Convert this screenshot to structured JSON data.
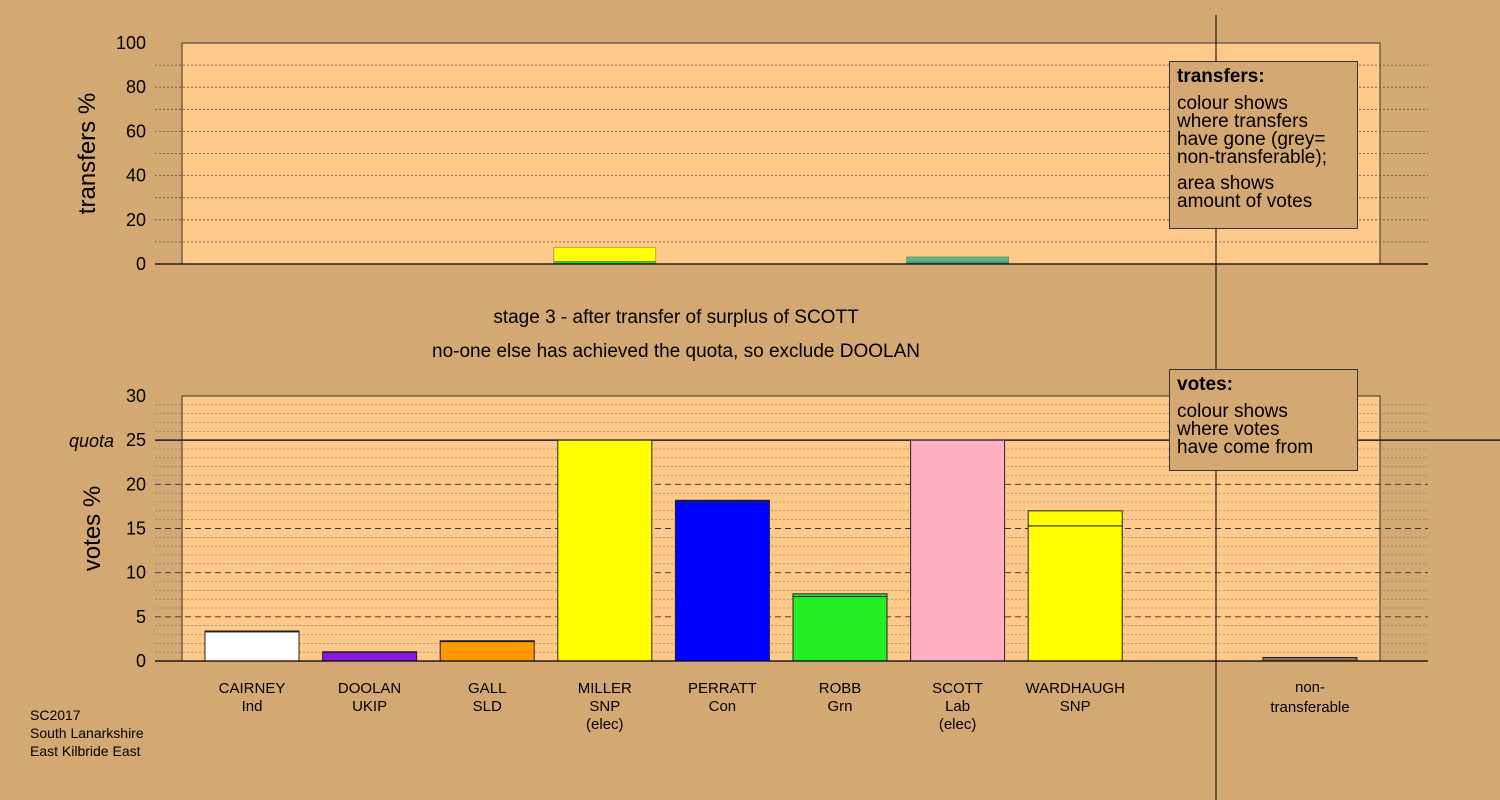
{
  "chart_data": [
    {
      "type": "bar",
      "ylabel": "transfers %",
      "ylim": [
        0,
        100
      ],
      "yticks": [
        0,
        20,
        40,
        60,
        80,
        100
      ],
      "segments": [
        {
          "category": "MILLER",
          "bottom": 0,
          "top": 1.2,
          "color": "#33cc33"
        },
        {
          "category": "MILLER",
          "bottom": 1.2,
          "top": 7.6,
          "color": "#ffff00"
        },
        {
          "category": "SCOTT",
          "bottom": 0,
          "top": 1.0,
          "color": "#3399aa"
        },
        {
          "category": "SCOTT",
          "bottom": 1.0,
          "top": 3.2,
          "color": "#55bb77"
        }
      ]
    },
    {
      "type": "bar",
      "ylabel": "votes %",
      "ylim": [
        0,
        30
      ],
      "yticks": [
        0,
        5,
        10,
        15,
        20,
        25,
        30
      ],
      "quota": 25,
      "quota_label": "quota",
      "series": [
        {
          "name": "CAIRNEY",
          "party": "Ind",
          "note": "",
          "color": "#ffffff",
          "value": 3.3,
          "transfer": 0.1
        },
        {
          "name": "DOOLAN",
          "party": "UKIP",
          "note": "",
          "color": "#8a1ae0",
          "value": 1.0,
          "transfer": 0.05
        },
        {
          "name": "GALL",
          "party": "SLD",
          "note": "",
          "color": "#ff9900",
          "value": 2.2,
          "transfer": 0.1
        },
        {
          "name": "MILLER",
          "party": "SNP",
          "note": "(elec)",
          "color": "#ffff00",
          "value": 25.0,
          "transfer": 0.0
        },
        {
          "name": "PERRATT",
          "party": "Con",
          "note": "",
          "color": "#0000ff",
          "value": 18.0,
          "transfer": 0.2
        },
        {
          "name": "ROBB",
          "party": "Grn",
          "note": "",
          "color": "#22ee22",
          "value": 7.3,
          "transfer": 0.3
        },
        {
          "name": "SCOTT",
          "party": "Lab",
          "note": "(elec)",
          "color": "#ffb0c0",
          "value": 25.0,
          "transfer": 0.0
        },
        {
          "name": "WARDHAUGH",
          "party": "SNP",
          "note": "",
          "color": "#ffff00",
          "value": 15.3,
          "transfer": 1.7
        }
      ],
      "nontransferable": {
        "label_line1": "non-",
        "label_line2": "transferable",
        "value": 0.4,
        "color": "#8b7355"
      }
    }
  ],
  "stage_line1": "stage 3 - after transfer of surplus of SCOTT",
  "stage_line2": "no-one else has achieved the quota, so exclude DOOLAN",
  "legend_transfers": {
    "title": "transfers:",
    "lines1": [
      "colour shows",
      "where transfers",
      "have gone (grey=",
      "non-transferable);"
    ],
    "lines2": [
      "area shows",
      "amount of votes"
    ]
  },
  "legend_votes": {
    "title": "votes:",
    "lines": [
      "colour shows",
      "where votes",
      "have come from"
    ]
  },
  "source": [
    "SC2017",
    "South Lanarkshire",
    "East Kilbride East"
  ],
  "colors": {
    "background": "#d4a873",
    "plot_fill": "#ffc98a",
    "axis": "#000000"
  }
}
